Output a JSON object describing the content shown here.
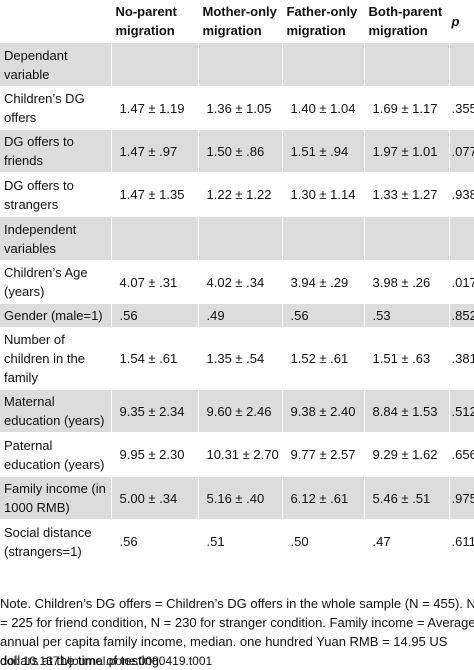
{
  "table": {
    "headers": {
      "col1_line1": "No-parent",
      "col1_line2": "migration",
      "col2_line1": "Mother-only",
      "col2_line2": "migration",
      "col3_line1": "Father-only",
      "col3_line2": "migration",
      "col4_line1": "Both-parent",
      "col4_line2": "migration",
      "col5": "p"
    },
    "rows": [
      {
        "label": "Dependant variable",
        "c1": "",
        "c2": "",
        "c3": "",
        "c4": "",
        "p": ""
      },
      {
        "label": "Children’s DG offers",
        "c1": "1.47 ± 1.19",
        "c2": "1.36 ± 1.05",
        "c3": "1.40 ± 1.04",
        "c4": "1.69 ± 1.17",
        "p": ".355"
      },
      {
        "label": "DG offers to friends",
        "c1": "1.47 ± .97",
        "c2": "1.50 ± .86",
        "c3": "1.51 ± .94",
        "c4": "1.97 ± 1.01",
        "p": ".077"
      },
      {
        "label": "DG offers to strangers",
        "c1": "1.47 ± 1.35",
        "c2": "1.22 ± 1.22",
        "c3": "1.30 ± 1.14",
        "c4": "1.33 ± 1.27",
        "p": ".938"
      },
      {
        "label": "Independent variables",
        "c1": "",
        "c2": "",
        "c3": "",
        "c4": "",
        "p": ""
      },
      {
        "label": "Children’s Age (years)",
        "c1": "4.07 ± .31",
        "c2": "4.02 ± .34",
        "c3": "3.94 ± .29",
        "c4": "3.98 ± .26",
        "p": ".017"
      },
      {
        "label": "Gender (male=1)",
        "c1": ".56",
        "c2": ".49",
        "c3": ".56",
        "c4": ".53",
        "p": ".852"
      },
      {
        "label": "Number of children in the family",
        "c1": "1.54 ± .61",
        "c2": "1.35 ± .54",
        "c3": "1.52 ± .61",
        "c4": "1.51 ± .63",
        "p": ".381"
      },
      {
        "label": "Maternal education (years)",
        "c1": "9.35 ± 2.34",
        "c2": "9.60 ± 2.46",
        "c3": "9.38 ± 2.40",
        "c4": "8.84 ± 1.53",
        "p": ".512"
      },
      {
        "label": "Paternal education (years)",
        "c1": "9.95 ± 2.30",
        "c2": "10.31 ± 2.70",
        "c3": "9.77 ± 2.57",
        "c4": "9.29 ± 1.62",
        "p": ".656"
      },
      {
        "label": "Family income (in 1000 RMB)",
        "c1": "5.00 ± .34",
        "c2": "5.16 ± .40",
        "c3": "6.12 ± .61",
        "c4": "5.46 ± .51",
        "p": ".975"
      },
      {
        "label": "Social distance (strangers=1)",
        "c1": ".56",
        "c2": ".51",
        "c3": ".50",
        "c4": ".47",
        "p": ".611"
      }
    ]
  },
  "note": {
    "line1": "Note. Children’s DG offers = Children’s DG offers in the whole sample (N = 455). N",
    "line2": "= 225 for friend condition, N = 230 for stranger condition. Family income = Average",
    "line3": "annual per capita family income, median. one hundred Yuan RMB = 14.95 US",
    "line4": "dollars at the time of testing."
  },
  "doi": "doi: 10.1371/journal.pone.0080419.t001"
}
